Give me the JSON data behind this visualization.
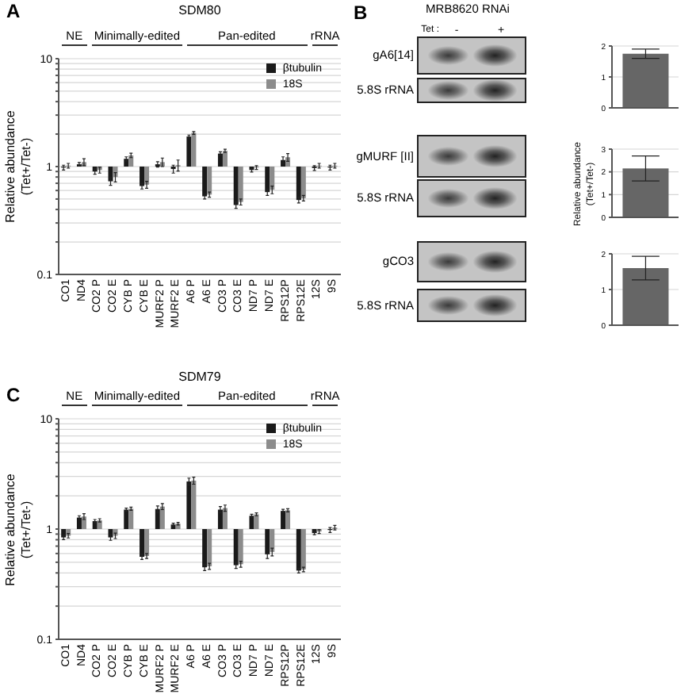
{
  "chart_data": [
    {
      "type": "bar",
      "title": "SDM80",
      "categories": [
        "CO1",
        "ND4",
        "CO2 P",
        "CO2 E",
        "CYB P",
        "CYB E",
        "MURF2 P",
        "MURF2 E",
        "A6 P",
        "A6 E",
        "CO3 P",
        "CO3 E",
        "ND7 P",
        "ND7 E",
        "RPS12P",
        "RPS12E",
        "12S",
        "9S"
      ],
      "series": [
        {
          "name": "βtubulin",
          "color": "#1a1a1a",
          "base": [
            1,
            1,
            1,
            1,
            1,
            1,
            1,
            1,
            1,
            1,
            1,
            1,
            1,
            1,
            1,
            1,
            1,
            1
          ],
          "values": [
            -0.02,
            0.05,
            -0.1,
            -0.27,
            0.18,
            -0.34,
            0.05,
            -0.05,
            0.9,
            -0.47,
            0.32,
            -0.56,
            -0.07,
            -0.42,
            0.15,
            -0.51,
            -0.03,
            -0.02
          ],
          "errors": [
            0.05,
            0.04,
            0.05,
            0.06,
            0.05,
            0.04,
            0.06,
            0.08,
            0.06,
            0.03,
            0.05,
            0.03,
            0.04,
            0.04,
            0.08,
            0.03,
            0.05,
            0.05
          ]
        },
        {
          "name": "18S",
          "color": "#8c8c8c",
          "base": [
            1,
            1,
            1,
            1,
            1,
            1,
            1,
            1,
            1,
            1,
            1,
            1,
            1,
            1,
            1,
            1,
            1,
            1
          ],
          "values": [
            0.02,
            0.1,
            -0.07,
            -0.2,
            0.27,
            -0.32,
            0.1,
            0.03,
            1.05,
            -0.45,
            0.4,
            -0.53,
            -0.02,
            -0.39,
            0.22,
            -0.49,
            0.02,
            0.02
          ],
          "errors": [
            0.05,
            0.08,
            0.06,
            0.08,
            0.06,
            0.05,
            0.1,
            0.12,
            0.06,
            0.03,
            0.05,
            0.03,
            0.04,
            0.05,
            0.1,
            0.03,
            0.05,
            0.05
          ]
        }
      ],
      "ylabel": "Relative abundance\n(Tet+/Tet-)",
      "log": "y",
      "ylim": [
        0.1,
        10
      ],
      "yticks": [
        0.1,
        {
          "value": 0.2,
          "label": null
        },
        {
          "value": 0.3,
          "label": null
        },
        {
          "value": 0.4,
          "label": null
        },
        {
          "value": 0.5,
          "label": null
        },
        {
          "value": 0.6,
          "label": null
        },
        {
          "value": 0.7,
          "label": null
        },
        {
          "value": 0.8,
          "label": null
        },
        {
          "value": 0.9,
          "label": null
        },
        1,
        {
          "value": 2,
          "label": null
        },
        {
          "value": 3,
          "label": null
        },
        {
          "value": 4,
          "label": null
        },
        {
          "value": 5,
          "label": null
        },
        {
          "value": 6,
          "label": null
        },
        {
          "value": 7,
          "label": null
        },
        {
          "value": 8,
          "label": null
        },
        {
          "value": 9,
          "label": null
        },
        10
      ],
      "grid": "y",
      "legend": "top right",
      "annotations": [
        "A",
        "NE",
        "Minimally-edited",
        "Pan-edited",
        "rRNA"
      ]
    },
    {
      "type": "other",
      "title": "MRB8620 RNAi",
      "annotations": [
        "B",
        "Tet :",
        "-",
        "+",
        "gA6[14]",
        "5.8S rRNA",
        "gMURF [II]",
        "5.8S rRNA",
        "gCO3",
        "5.8S rRNA"
      ]
    },
    {
      "type": "bar",
      "categories": [
        null
      ],
      "values": [
        1.75
      ],
      "errors": [
        0.15
      ],
      "color": "#666666",
      "ylim": [
        0,
        2
      ],
      "yticks": [
        0,
        1,
        2
      ],
      "grid": "y",
      "tick_labels": "y"
    },
    {
      "type": "bar",
      "categories": [
        null
      ],
      "values": [
        2.15
      ],
      "errors": [
        0.55
      ],
      "color": "#666666",
      "ylabel": "Relative abundance\n(Tet+/Tet-)",
      "ylim": [
        0,
        3
      ],
      "yticks": [
        0,
        1,
        2,
        3
      ],
      "grid": "y",
      "tick_labels": "y"
    },
    {
      "type": "bar",
      "categories": [
        null
      ],
      "values": [
        1.6
      ],
      "errors": [
        0.33
      ],
      "color": "#666666",
      "ylim": [
        0,
        2
      ],
      "yticks": [
        0,
        1,
        2
      ],
      "grid": "y",
      "tick_labels": "y"
    },
    {
      "type": "bar",
      "title": "SDM79",
      "categories": [
        "CO1",
        "ND4",
        "CO2 P",
        "CO2 E",
        "CYB P",
        "CYB E",
        "MURF2 P",
        "MURF2 E",
        "A6 P",
        "A6 E",
        "CO3 P",
        "CO3 E",
        "ND7 P",
        "ND7 E",
        "RPS12P",
        "RPS12E",
        "12S",
        "9S"
      ],
      "series": [
        {
          "name": "βtubulin",
          "color": "#1a1a1a",
          "base": [
            1,
            1,
            1,
            1,
            1,
            1,
            1,
            1,
            1,
            1,
            1,
            1,
            1,
            1,
            1,
            1,
            1,
            1
          ],
          "values": [
            -0.16,
            0.27,
            0.18,
            -0.16,
            0.5,
            -0.44,
            0.52,
            0.1,
            1.7,
            -0.55,
            0.5,
            -0.53,
            0.32,
            -0.41,
            0.46,
            -0.58,
            -0.08,
            -0.02
          ],
          "errors": [
            0.04,
            0.05,
            0.04,
            0.05,
            0.05,
            0.03,
            0.1,
            0.03,
            0.2,
            0.03,
            0.1,
            0.03,
            0.04,
            0.05,
            0.05,
            0.02,
            0.03,
            0.05
          ]
        },
        {
          "name": "18S",
          "color": "#8c8c8c",
          "base": [
            1,
            1,
            1,
            1,
            1,
            1,
            1,
            1,
            1,
            1,
            1,
            1,
            1,
            1,
            1,
            1,
            1,
            1
          ],
          "values": [
            -0.13,
            0.3,
            0.2,
            -0.13,
            0.53,
            -0.43,
            0.6,
            0.12,
            1.75,
            -0.54,
            0.55,
            -0.52,
            0.36,
            -0.38,
            0.48,
            -0.57,
            -0.05,
            0.03
          ],
          "errors": [
            0.04,
            0.08,
            0.04,
            0.05,
            0.05,
            0.03,
            0.1,
            0.03,
            0.2,
            0.03,
            0.1,
            0.03,
            0.04,
            0.05,
            0.05,
            0.02,
            0.04,
            0.05
          ]
        }
      ],
      "ylabel": "Relative abundance\n(Tet+/Tet-)",
      "log": "y",
      "ylim": [
        0.1,
        10
      ],
      "yticks": [
        0.1,
        {
          "value": 0.2,
          "label": null
        },
        {
          "value": 0.3,
          "label": null
        },
        {
          "value": 0.4,
          "label": null
        },
        {
          "value": 0.5,
          "label": null
        },
        {
          "value": 0.6,
          "label": null
        },
        {
          "value": 0.7,
          "label": null
        },
        {
          "value": 0.8,
          "label": null
        },
        {
          "value": 0.9,
          "label": null
        },
        1,
        {
          "value": 2,
          "label": null
        },
        {
          "value": 3,
          "label": null
        },
        {
          "value": 4,
          "label": null
        },
        {
          "value": 5,
          "label": null
        },
        {
          "value": 6,
          "label": null
        },
        {
          "value": 7,
          "label": null
        },
        {
          "value": 8,
          "label": null
        },
        {
          "value": 9,
          "label": null
        },
        10
      ],
      "grid": "y",
      "legend": "top right",
      "annotations": [
        "C",
        "NE",
        "Minimally-edited",
        "Pan-edited",
        "rRNA"
      ]
    }
  ]
}
